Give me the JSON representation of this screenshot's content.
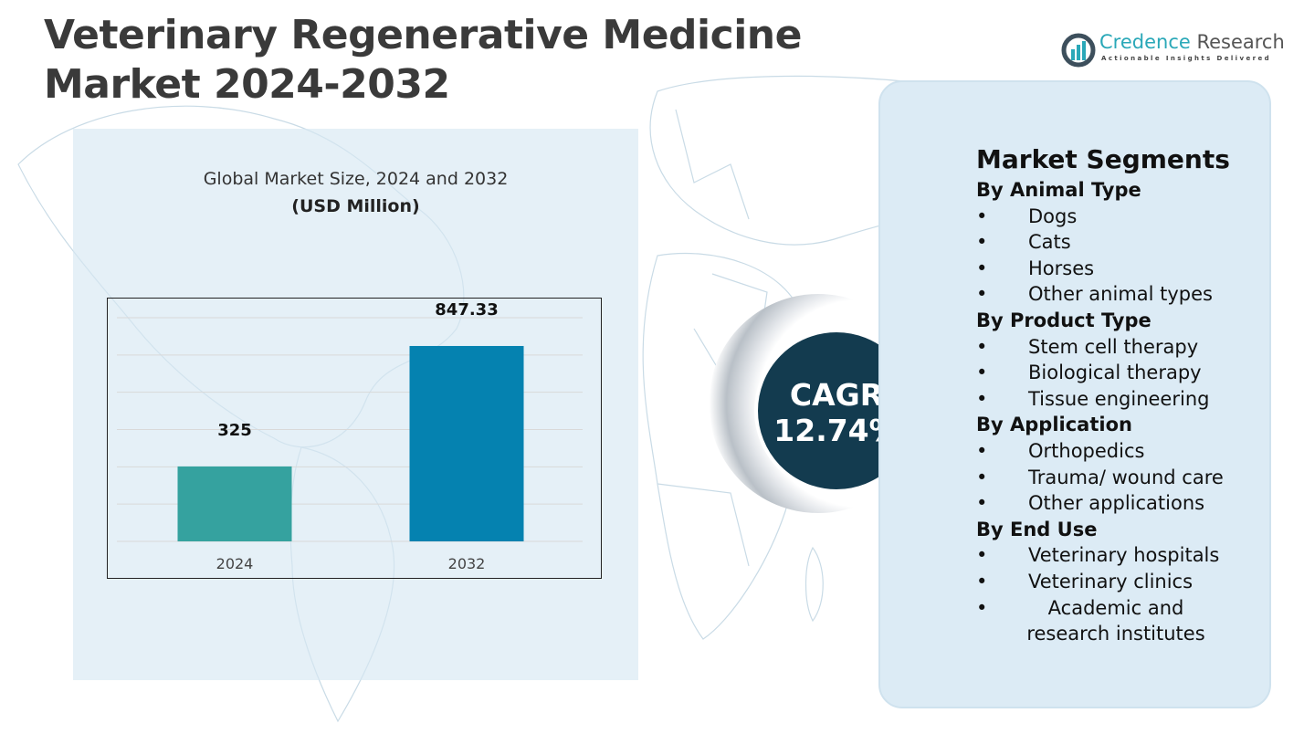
{
  "title": "Veterinary Regenerative Medicine Market 2024-2032",
  "logo": {
    "name_part1": "Credence",
    "name_part2": " Research",
    "tagline": "Actionable Insights Delivered"
  },
  "chart_data": {
    "type": "bar",
    "title": "Global Market Size, 2024 and 2032",
    "subtitle": "(USD Million)",
    "categories": [
      "2024",
      "2032"
    ],
    "values": [
      325,
      847.33
    ],
    "value_labels": [
      "325",
      "847.33"
    ],
    "colors": [
      "#35a29f",
      "#0582b0"
    ],
    "ylim": [
      0,
      970
    ],
    "grid": true,
    "legend": "none"
  },
  "cagr": {
    "label": "CAGR",
    "value": "12.74%"
  },
  "segments": {
    "title": "Market Segments",
    "groups": [
      {
        "heading": "By Animal Type",
        "items": [
          "Dogs",
          "Cats",
          "Horses",
          "Other animal types"
        ]
      },
      {
        "heading": "By Product Type",
        "items": [
          "Stem cell therapy",
          "Biological therapy",
          "Tissue engineering"
        ]
      },
      {
        "heading": "By Application",
        "items": [
          "Orthopedics",
          "Trauma/ wound care",
          "Other applications"
        ]
      },
      {
        "heading": "By End Use",
        "items": [
          "Veterinary hospitals",
          "Veterinary clinics",
          "Academic and research institutes"
        ]
      }
    ],
    "bullet": "•"
  },
  "colors": {
    "cagr_bg": "#133b4f",
    "panel_bg": "#dcebf5"
  }
}
